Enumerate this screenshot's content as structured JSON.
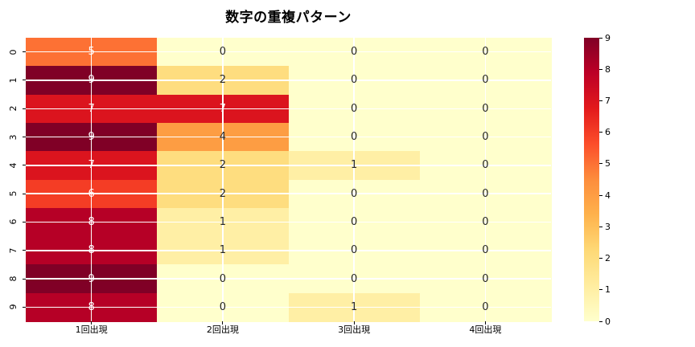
{
  "figure": {
    "background": "#ffffff"
  },
  "chart_data": {
    "type": "heatmap",
    "title": "数字の重複パターン",
    "row_labels": [
      "0",
      "1",
      "2",
      "3",
      "4",
      "5",
      "6",
      "7",
      "8",
      "9"
    ],
    "column_labels": [
      "1回出現",
      "2回出現",
      "3回出現",
      "4回出現"
    ],
    "values": [
      [
        5,
        0,
        0,
        0
      ],
      [
        9,
        2,
        0,
        0
      ],
      [
        7,
        7,
        0,
        0
      ],
      [
        9,
        4,
        0,
        0
      ],
      [
        7,
        2,
        1,
        0
      ],
      [
        6,
        2,
        0,
        0
      ],
      [
        8,
        1,
        0,
        0
      ],
      [
        8,
        1,
        0,
        0
      ],
      [
        9,
        0,
        0,
        0
      ],
      [
        8,
        0,
        1,
        0
      ]
    ],
    "vmin": 0,
    "vmax": 9,
    "annotations": true,
    "grid": true,
    "colormap": "YlOrRd",
    "colormap_anchors": [
      "#ffffcc",
      "#ffeda0",
      "#fed976",
      "#feb24c",
      "#fd8d3c",
      "#fc4e2a",
      "#e31a1c",
      "#bd0026",
      "#800026"
    ],
    "colorbar_ticks": [
      0,
      1,
      2,
      3,
      4,
      5,
      6,
      7,
      8,
      9
    ],
    "colorbar_position": "right",
    "colors": {
      "grid_line": "#ffffff",
      "annotation_dark": "#262626",
      "annotation_light": "#ffffff",
      "tick": "#000000"
    }
  }
}
